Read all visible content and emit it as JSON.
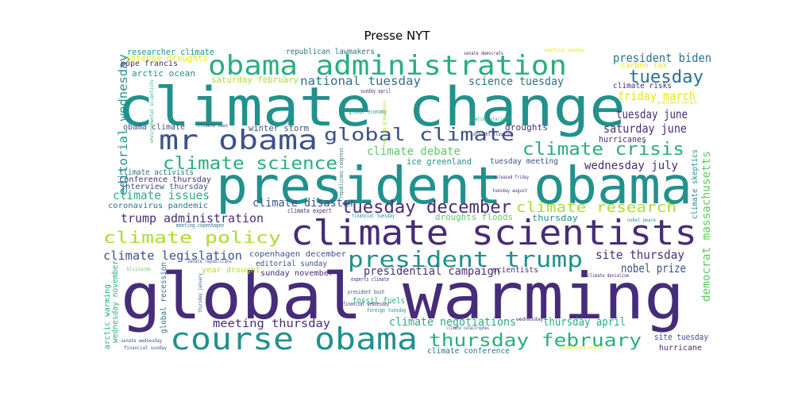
{
  "chart_data": {
    "type": "wordcloud",
    "title": "Presse NYT",
    "colors": {
      "purple": "#472c7a",
      "indigo": "#3b528b",
      "blue": "#2c728e",
      "teal": "#21918c",
      "green": "#28ae80",
      "lgreen": "#5ec962",
      "yellowgreen": "#addc30",
      "yellow": "#e5e419",
      "dark": "#440154"
    },
    "words": [
      {
        "text": "global warming",
        "color": "purple"
      },
      {
        "text": "climate change",
        "color": "teal"
      },
      {
        "text": "president obama",
        "color": "teal"
      },
      {
        "text": "climate scientists",
        "color": "purple"
      },
      {
        "text": "course obama",
        "color": "teal"
      },
      {
        "text": "obama administration",
        "color": "green"
      },
      {
        "text": "mr obama",
        "color": "indigo"
      },
      {
        "text": "president trump",
        "color": "teal"
      },
      {
        "text": "global climate",
        "color": "indigo"
      },
      {
        "text": "climate science",
        "color": "green"
      },
      {
        "text": "climate crisis",
        "color": "green"
      },
      {
        "text": "thursday february",
        "color": "green"
      },
      {
        "text": "climate policy",
        "color": "yellowgreen"
      },
      {
        "text": "tuesday december",
        "color": "purple"
      },
      {
        "text": "climate research",
        "color": "yellowgreen"
      },
      {
        "text": "tuesday",
        "color": "blue"
      },
      {
        "text": "president biden",
        "color": "blue"
      },
      {
        "text": "trump administration",
        "color": "purple"
      },
      {
        "text": "national tuesday",
        "color": "blue"
      },
      {
        "text": "science tuesday",
        "color": "blue"
      },
      {
        "text": "friday march",
        "color": "yellow"
      },
      {
        "text": "tuesday june",
        "color": "purple"
      },
      {
        "text": "saturday june",
        "color": "purple"
      },
      {
        "text": "climate legislation",
        "color": "indigo"
      },
      {
        "text": "site thursday",
        "color": "purple"
      },
      {
        "text": "nobel prize",
        "color": "indigo"
      },
      {
        "text": "meeting thursday",
        "color": "purple"
      },
      {
        "text": "thursday april",
        "color": "green"
      },
      {
        "text": "climate negotiations",
        "color": "green"
      },
      {
        "text": "editorial wednesday",
        "color": "teal"
      },
      {
        "text": "climate debate",
        "color": "lgreen"
      },
      {
        "text": "climate issues",
        "color": "green"
      },
      {
        "text": "wednesday july",
        "color": "purple"
      },
      {
        "text": "climate disaster",
        "color": "indigo"
      },
      {
        "text": "presidential campaign",
        "color": "purple"
      },
      {
        "text": "democrat massachusetts",
        "color": "lgreen"
      },
      {
        "text": "researcher climate",
        "color": "teal"
      },
      {
        "text": "intense droughts",
        "color": "yellow"
      },
      {
        "text": "arctic ocean",
        "color": "teal"
      },
      {
        "text": "republican lawmakers",
        "color": "blue"
      },
      {
        "text": "saturday february",
        "color": "yellowgreen"
      },
      {
        "text": "climate risks",
        "color": "purple"
      },
      {
        "text": "ice greenland",
        "color": "teal"
      },
      {
        "text": "tuesday meeting",
        "color": "indigo"
      },
      {
        "text": "droughts",
        "color": "purple"
      },
      {
        "text": "hurricanes",
        "color": "purple"
      },
      {
        "text": "winter storm",
        "color": "indigo"
      },
      {
        "text": "obama climate",
        "color": "indigo"
      },
      {
        "text": "climate activists",
        "color": "blue"
      },
      {
        "text": "conference thursday",
        "color": "purple"
      },
      {
        "text": "interview thursday",
        "color": "indigo"
      },
      {
        "text": "coronavirus pandemic",
        "color": "blue"
      },
      {
        "text": "droughts floods",
        "color": "lgreen"
      },
      {
        "text": "thursday",
        "color": "teal"
      },
      {
        "text": "copenhagen december",
        "color": "indigo"
      },
      {
        "text": "editorial sunday",
        "color": "indigo"
      },
      {
        "text": "sunday november",
        "color": "purple"
      },
      {
        "text": "year drought",
        "color": "yellowgreen"
      },
      {
        "text": "fossil fuels",
        "color": "green"
      },
      {
        "text": "scientists",
        "color": "purple"
      },
      {
        "text": "climate conference",
        "color": "blue"
      },
      {
        "text": "site tuesday",
        "color": "indigo"
      },
      {
        "text": "hurricane",
        "color": "purple"
      },
      {
        "text": "global recession",
        "color": "blue"
      },
      {
        "text": "wednesday november",
        "color": "green"
      },
      {
        "text": "arctic warming",
        "color": "green"
      },
      {
        "text": "climate skeptics",
        "color": "teal"
      },
      {
        "text": "pope francis",
        "color": "purple"
      },
      {
        "text": "carbon tax",
        "color": "yellow"
      },
      {
        "text": "president barack",
        "color": "yellow"
      },
      {
        "text": "climate expert",
        "color": "purple"
      },
      {
        "text": "financial tuesday",
        "color": "teal"
      },
      {
        "text": "nobel peace",
        "color": "teal"
      },
      {
        "text": "meeting copenhagen",
        "color": "blue"
      },
      {
        "text": "senate republicans",
        "color": "indigo"
      },
      {
        "text": "experts climate",
        "color": "purple"
      },
      {
        "text": "president bush",
        "color": "indigo"
      },
      {
        "text": "financial wednesday",
        "color": "purple"
      },
      {
        "text": "foreign tuesday",
        "color": "teal"
      },
      {
        "text": "climate denialism",
        "color": "purple"
      },
      {
        "text": "climate catastrophes",
        "color": "indigo"
      },
      {
        "text": "wednesday",
        "color": "purple"
      },
      {
        "text": "conditions arctic",
        "color": "yellow"
      },
      {
        "text": "senate wednesday",
        "color": "indigo"
      },
      {
        "text": "financial sunday",
        "color": "indigo"
      },
      {
        "text": "blizzards",
        "color": "lgreen"
      },
      {
        "text": "senate democrats",
        "color": "purple"
      },
      {
        "text": "meeting sunday",
        "color": "yellow"
      },
      {
        "text": "sunday april",
        "color": "purple"
      },
      {
        "text": "global economy",
        "color": "teal"
      },
      {
        "text": "reducing greenhouse",
        "color": "yellowgreen"
      },
      {
        "text": "meeting glaciers",
        "color": "green"
      },
      {
        "text": "drought flooding",
        "color": "purple"
      },
      {
        "text": "climate news",
        "color": "indigo"
      },
      {
        "text": "released friday",
        "color": "purple"
      },
      {
        "text": "tuesday august",
        "color": "purple"
      },
      {
        "text": "republicans congress",
        "color": "blue"
      },
      {
        "text": "environmental scientists",
        "color": "green"
      },
      {
        "text": "thursday january",
        "color": "indigo"
      }
    ]
  }
}
